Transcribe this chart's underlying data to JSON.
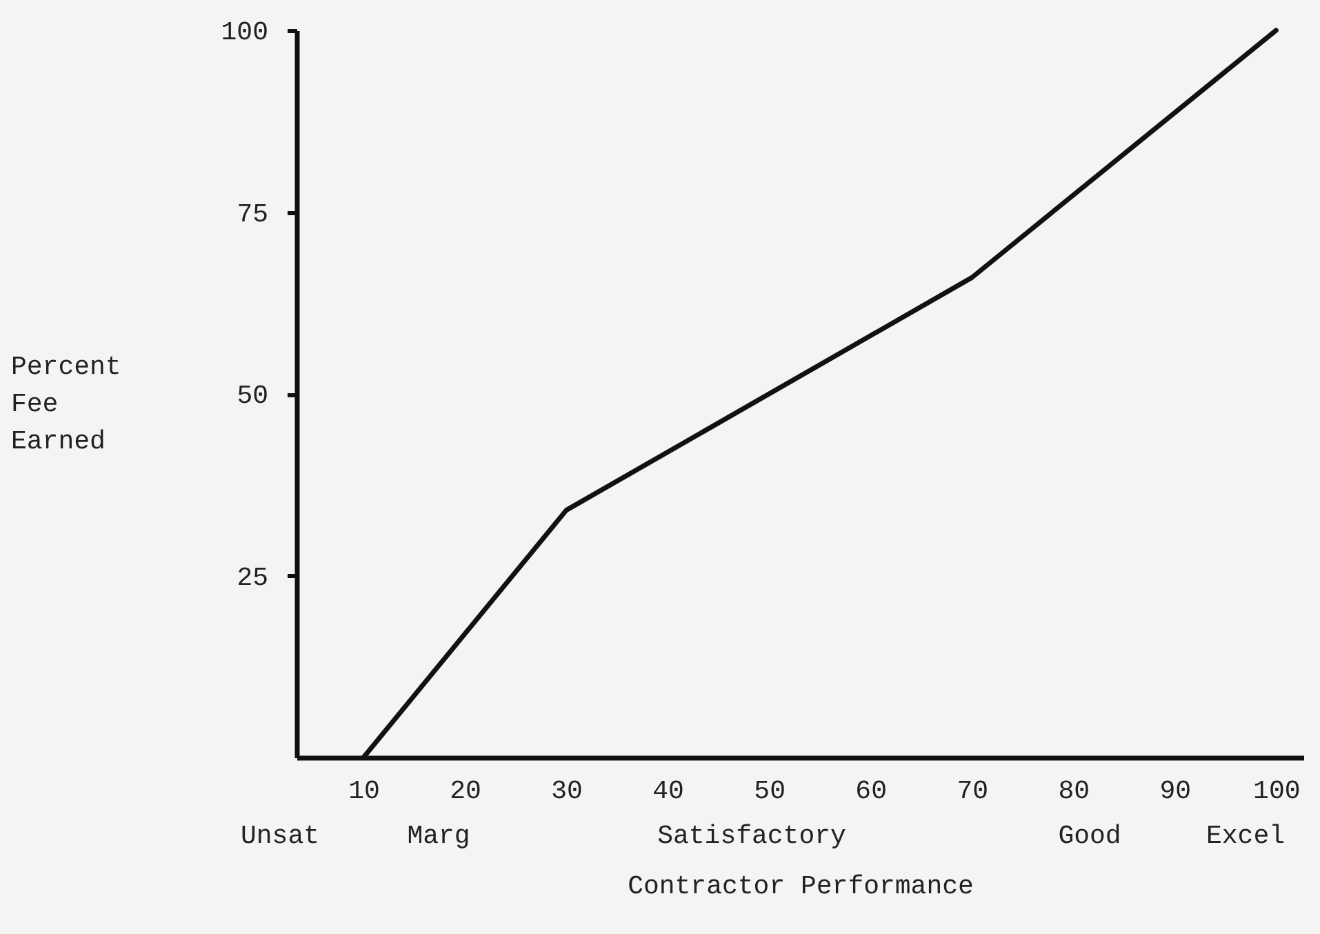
{
  "chart_data": {
    "type": "line",
    "xlabel": "Contractor Performance",
    "ylabel": "Percent Fee Earned",
    "x": [
      10,
      30,
      70,
      100
    ],
    "series": [
      {
        "color": "#111111",
        "values": [
          0,
          34,
          66,
          100
        ]
      }
    ],
    "xlim": [
      3.4,
      102.7
    ],
    "xticks": [
      10,
      20,
      30,
      40,
      50,
      60,
      70,
      80,
      90,
      100
    ],
    "ylim": [
      0,
      100
    ],
    "yticks": [
      25,
      50,
      75,
      100
    ],
    "marker": "none",
    "line_style": "solid",
    "annotations": [
      "Unsat",
      "Marg",
      "Satisfactory",
      "Good",
      "Excel"
    ]
  }
}
